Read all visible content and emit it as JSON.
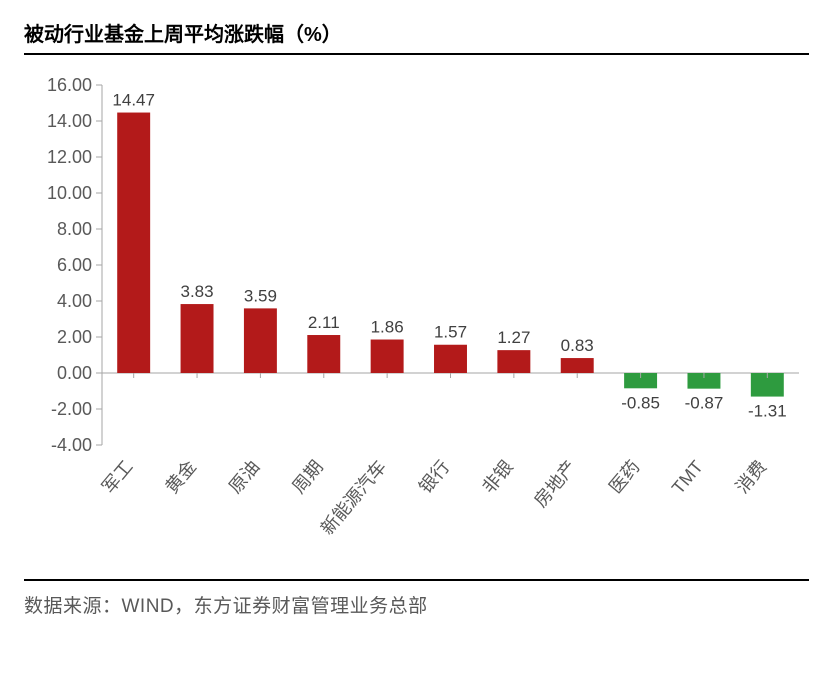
{
  "chart": {
    "type": "bar",
    "title": "被动行业基金上周平均涨跌幅（%）",
    "categories": [
      "军工",
      "黄金",
      "原油",
      "周期",
      "新能源汽车",
      "银行",
      "非银",
      "房地产",
      "医药",
      "TMT",
      "消费"
    ],
    "values": [
      14.47,
      3.83,
      3.59,
      2.11,
      1.86,
      1.57,
      1.27,
      0.83,
      -0.85,
      -0.87,
      -1.31
    ],
    "bar_colors": [
      "#b31a1a",
      "#b31a1a",
      "#b31a1a",
      "#b31a1a",
      "#b31a1a",
      "#b31a1a",
      "#b31a1a",
      "#b31a1a",
      "#2e9b3f",
      "#2e9b3f",
      "#2e9b3f"
    ],
    "positive_color": "#b31a1a",
    "negative_color": "#2e9b3f",
    "ylim": [
      -4,
      16
    ],
    "ytick_step": 2,
    "ytick_labels": [
      "-4.00",
      "-2.00",
      "0.00",
      "2.00",
      "4.00",
      "6.00",
      "8.00",
      "10.00",
      "12.00",
      "14.00",
      "16.00"
    ],
    "ytick_values": [
      -4,
      -2,
      0,
      2,
      4,
      6,
      8,
      10,
      12,
      14,
      16
    ],
    "bar_width_ratio": 0.52,
    "title_fontsize": 20,
    "title_fontweight": "bold",
    "title_color": "#000000",
    "axis_label_fontsize": 18,
    "axis_label_color": "#595959",
    "value_label_fontsize": 17,
    "value_label_color": "#404040",
    "category_label_fontsize": 18,
    "category_label_rotation_deg": -50,
    "background_color": "#ffffff",
    "axis_line_color": "#a6a6a6",
    "tick_color": "#a6a6a6",
    "rule_color": "#000000",
    "grid": false,
    "source_text": "数据来源：WIND，东方证券财富管理业务总部",
    "source_fontsize": 19,
    "source_color": "#595959"
  }
}
